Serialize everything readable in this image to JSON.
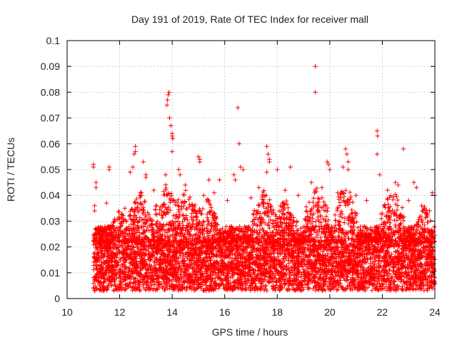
{
  "chart_data": {
    "type": "scatter",
    "title": "Day 191 of 2019, Rate Of TEC Index for receiver mall",
    "xlabel": "GPS time / hours",
    "ylabel": "ROTI / TECUs",
    "xlim": [
      10,
      24
    ],
    "ylim": [
      0,
      0.1
    ],
    "x_ticks": [
      "10",
      "12",
      "14",
      "16",
      "18",
      "20",
      "22",
      "24"
    ],
    "y_ticks": [
      "0",
      "0.01",
      "0.02",
      "0.03",
      "0.04",
      "0.05",
      "0.06",
      "0.07",
      "0.08",
      "0.09",
      "0.1"
    ],
    "grid": true,
    "marker": "+",
    "color": "#ff0000",
    "series": [
      {
        "name": "ROTI",
        "points": [
          [
            11.0,
            0.052
          ],
          [
            11.0,
            0.051
          ],
          [
            11.05,
            0.036
          ],
          [
            11.05,
            0.034
          ],
          [
            11.1,
            0.045
          ],
          [
            11.1,
            0.043
          ],
          [
            11.6,
            0.051
          ],
          [
            11.6,
            0.05
          ],
          [
            12.4,
            0.049
          ],
          [
            12.5,
            0.051
          ],
          [
            12.55,
            0.056
          ],
          [
            12.6,
            0.059
          ],
          [
            12.6,
            0.057
          ],
          [
            12.9,
            0.053
          ],
          [
            13.0,
            0.048
          ],
          [
            13.0,
            0.047
          ],
          [
            13.75,
            0.048
          ],
          [
            13.8,
            0.075
          ],
          [
            13.82,
            0.077
          ],
          [
            13.85,
            0.079
          ],
          [
            13.88,
            0.08
          ],
          [
            13.9,
            0.07
          ],
          [
            13.95,
            0.067
          ],
          [
            14.0,
            0.064
          ],
          [
            14.0,
            0.063
          ],
          [
            14.02,
            0.062
          ],
          [
            14.0,
            0.057
          ],
          [
            14.25,
            0.05
          ],
          [
            14.3,
            0.048
          ],
          [
            15.0,
            0.055
          ],
          [
            15.05,
            0.053
          ],
          [
            15.05,
            0.054
          ],
          [
            15.4,
            0.046
          ],
          [
            15.8,
            0.046
          ],
          [
            16.35,
            0.048
          ],
          [
            16.4,
            0.046
          ],
          [
            16.5,
            0.074
          ],
          [
            16.55,
            0.06
          ],
          [
            16.6,
            0.051
          ],
          [
            16.7,
            0.05
          ],
          [
            17.6,
            0.059
          ],
          [
            17.65,
            0.056
          ],
          [
            17.7,
            0.054
          ],
          [
            17.7,
            0.053
          ],
          [
            17.6,
            0.049
          ],
          [
            18.0,
            0.05
          ],
          [
            18.5,
            0.051
          ],
          [
            19.45,
            0.09
          ],
          [
            19.45,
            0.08
          ],
          [
            19.9,
            0.053
          ],
          [
            19.95,
            0.052
          ],
          [
            20.0,
            0.05
          ],
          [
            20.6,
            0.058
          ],
          [
            20.65,
            0.056
          ],
          [
            20.7,
            0.053
          ],
          [
            20.7,
            0.05
          ],
          [
            20.5,
            0.051
          ],
          [
            21.8,
            0.065
          ],
          [
            21.82,
            0.063
          ],
          [
            21.8,
            0.056
          ],
          [
            21.9,
            0.048
          ],
          [
            22.8,
            0.058
          ],
          [
            23.2,
            0.045
          ],
          [
            23.3,
            0.043
          ],
          [
            23.9,
            0.041
          ],
          [
            24.0,
            0.04
          ],
          [
            23.6,
            0.035
          ],
          [
            23.8,
            0.034
          ],
          [
            11.5,
            0.037
          ],
          [
            12.2,
            0.035
          ],
          [
            12.8,
            0.04
          ],
          [
            13.3,
            0.042
          ],
          [
            14.5,
            0.044
          ],
          [
            15.2,
            0.04
          ],
          [
            15.6,
            0.041
          ],
          [
            16.1,
            0.038
          ],
          [
            17.0,
            0.039
          ],
          [
            17.3,
            0.043
          ],
          [
            18.3,
            0.042
          ],
          [
            18.8,
            0.04
          ],
          [
            19.3,
            0.045
          ],
          [
            19.7,
            0.043
          ],
          [
            20.3,
            0.041
          ],
          [
            21.0,
            0.04
          ],
          [
            21.4,
            0.038
          ],
          [
            22.2,
            0.042
          ],
          [
            22.5,
            0.045
          ],
          [
            22.6,
            0.044
          ],
          [
            23.0,
            0.038
          ],
          [
            23.5,
            0.036
          ]
        ]
      }
    ],
    "dense_band": {
      "description": "dense cloud of points between 11.0 and 24 hours",
      "x_range": [
        11.0,
        24.0
      ],
      "core_range": [
        0.003,
        0.022
      ],
      "upper_range": [
        0.022,
        0.045
      ],
      "bursts": [
        {
          "x": 12.0,
          "peak": 0.035
        },
        {
          "x": 12.8,
          "peak": 0.042
        },
        {
          "x": 13.8,
          "peak": 0.045
        },
        {
          "x": 14.5,
          "peak": 0.044
        },
        {
          "x": 15.3,
          "peak": 0.04
        },
        {
          "x": 17.5,
          "peak": 0.043
        },
        {
          "x": 18.3,
          "peak": 0.04
        },
        {
          "x": 19.5,
          "peak": 0.044
        },
        {
          "x": 20.6,
          "peak": 0.045
        },
        {
          "x": 22.4,
          "peak": 0.043
        },
        {
          "x": 23.6,
          "peak": 0.036
        }
      ]
    }
  }
}
